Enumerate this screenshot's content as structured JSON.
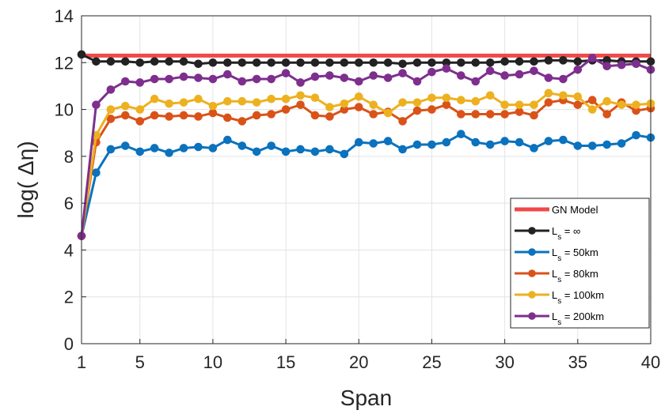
{
  "chart_data": {
    "type": "line",
    "xlabel": "Span",
    "ylabel": "log( Δη)",
    "xlim": [
      1,
      40
    ],
    "ylim": [
      0,
      14
    ],
    "xticks": [
      1,
      5,
      10,
      15,
      20,
      25,
      30,
      35,
      40
    ],
    "yticks": [
      0,
      2,
      4,
      6,
      8,
      10,
      12,
      14
    ],
    "grid": true,
    "legend_position": "bottom-right",
    "series": [
      {
        "name": "GN Model",
        "color": "#f0494a",
        "markers": false,
        "x": [
          1,
          40
        ],
        "values": [
          12.3,
          12.3
        ]
      },
      {
        "name": "L_s = ∞",
        "legend_main": "L",
        "legend_sub": "s",
        "legend_rest": " =  ∞",
        "color": "#222222",
        "markers": true,
        "x": [
          1,
          2,
          3,
          4,
          5,
          6,
          7,
          8,
          9,
          10,
          11,
          12,
          13,
          14,
          15,
          16,
          17,
          18,
          19,
          20,
          21,
          22,
          23,
          24,
          25,
          26,
          27,
          28,
          29,
          30,
          31,
          32,
          33,
          34,
          35,
          36,
          37,
          38,
          39,
          40
        ],
        "values": [
          12.35,
          12.05,
          12.05,
          12.05,
          12.0,
          12.05,
          12.05,
          12.05,
          11.95,
          12.0,
          12.0,
          12.0,
          12.0,
          12.0,
          12.0,
          12.0,
          12.0,
          12.0,
          12.0,
          12.0,
          12.0,
          12.0,
          11.95,
          12.0,
          12.0,
          12.0,
          12.0,
          12.0,
          12.0,
          12.05,
          12.05,
          12.05,
          12.1,
          12.1,
          12.05,
          12.1,
          12.1,
          12.05,
          12.05,
          12.05
        ]
      },
      {
        "name": "L_s = 50km",
        "legend_main": "L",
        "legend_sub": "s",
        "legend_rest": " = 50km",
        "color": "#0b72bd",
        "markers": true,
        "x": [
          1,
          2,
          3,
          4,
          5,
          6,
          7,
          8,
          9,
          10,
          11,
          12,
          13,
          14,
          15,
          16,
          17,
          18,
          19,
          20,
          21,
          22,
          23,
          24,
          25,
          26,
          27,
          28,
          29,
          30,
          31,
          32,
          33,
          34,
          35,
          36,
          37,
          38,
          39,
          40
        ],
        "values": [
          4.6,
          7.3,
          8.3,
          8.45,
          8.2,
          8.35,
          8.15,
          8.35,
          8.4,
          8.35,
          8.7,
          8.45,
          8.2,
          8.45,
          8.2,
          8.3,
          8.2,
          8.3,
          8.1,
          8.6,
          8.55,
          8.65,
          8.3,
          8.5,
          8.5,
          8.6,
          8.95,
          8.6,
          8.5,
          8.65,
          8.6,
          8.35,
          8.65,
          8.7,
          8.45,
          8.45,
          8.5,
          8.55,
          8.9,
          8.8
        ]
      },
      {
        "name": "L_s = 80km",
        "legend_main": "L",
        "legend_sub": "s",
        "legend_rest": " = 80km",
        "color": "#d95319",
        "markers": true,
        "x": [
          1,
          2,
          3,
          4,
          5,
          6,
          7,
          8,
          9,
          10,
          11,
          12,
          13,
          14,
          15,
          16,
          17,
          18,
          19,
          20,
          21,
          22,
          23,
          24,
          25,
          26,
          27,
          28,
          29,
          30,
          31,
          32,
          33,
          34,
          35,
          36,
          37,
          38,
          39,
          40
        ],
        "values": [
          4.6,
          8.6,
          9.6,
          9.75,
          9.5,
          9.75,
          9.7,
          9.75,
          9.7,
          9.85,
          9.65,
          9.5,
          9.75,
          9.8,
          10.0,
          10.2,
          9.75,
          9.7,
          10.0,
          10.1,
          9.8,
          9.9,
          9.5,
          9.95,
          10.0,
          10.2,
          9.8,
          9.8,
          9.8,
          9.8,
          9.9,
          9.75,
          10.3,
          10.4,
          10.2,
          10.4,
          9.8,
          10.3,
          9.95,
          10.05
        ]
      },
      {
        "name": "L_s = 100km",
        "legend_main": "L",
        "legend_sub": "s",
        "legend_rest": " = 100km",
        "color": "#edb120",
        "markers": true,
        "x": [
          1,
          2,
          3,
          4,
          5,
          6,
          7,
          8,
          9,
          10,
          11,
          12,
          13,
          14,
          15,
          16,
          17,
          18,
          19,
          20,
          21,
          22,
          23,
          24,
          25,
          26,
          27,
          28,
          29,
          30,
          31,
          32,
          33,
          34,
          35,
          36,
          37,
          38,
          39,
          40
        ],
        "values": [
          4.6,
          8.9,
          10.0,
          10.15,
          10.0,
          10.45,
          10.25,
          10.3,
          10.45,
          10.15,
          10.35,
          10.35,
          10.3,
          10.45,
          10.45,
          10.6,
          10.5,
          10.1,
          10.25,
          10.55,
          10.2,
          9.85,
          10.3,
          10.3,
          10.5,
          10.5,
          10.4,
          10.35,
          10.6,
          10.2,
          10.2,
          10.2,
          10.7,
          10.6,
          10.55,
          10.0,
          10.35,
          10.2,
          10.2,
          10.25
        ]
      },
      {
        "name": "L_s = 200km",
        "legend_main": "L",
        "legend_sub": "s",
        "legend_rest": " = 200km",
        "color": "#7e2f8e",
        "markers": true,
        "x": [
          1,
          2,
          3,
          4,
          5,
          6,
          7,
          8,
          9,
          10,
          11,
          12,
          13,
          14,
          15,
          16,
          17,
          18,
          19,
          20,
          21,
          22,
          23,
          24,
          25,
          26,
          27,
          28,
          29,
          30,
          31,
          32,
          33,
          34,
          35,
          36,
          37,
          38,
          39,
          40
        ],
        "values": [
          4.6,
          10.2,
          10.85,
          11.2,
          11.15,
          11.3,
          11.3,
          11.4,
          11.35,
          11.3,
          11.5,
          11.2,
          11.3,
          11.3,
          11.55,
          11.15,
          11.4,
          11.45,
          11.35,
          11.2,
          11.45,
          11.35,
          11.55,
          11.2,
          11.6,
          11.75,
          11.45,
          11.2,
          11.65,
          11.45,
          11.5,
          11.65,
          11.35,
          11.3,
          11.7,
          12.2,
          11.85,
          11.9,
          11.95,
          11.7
        ]
      }
    ]
  }
}
